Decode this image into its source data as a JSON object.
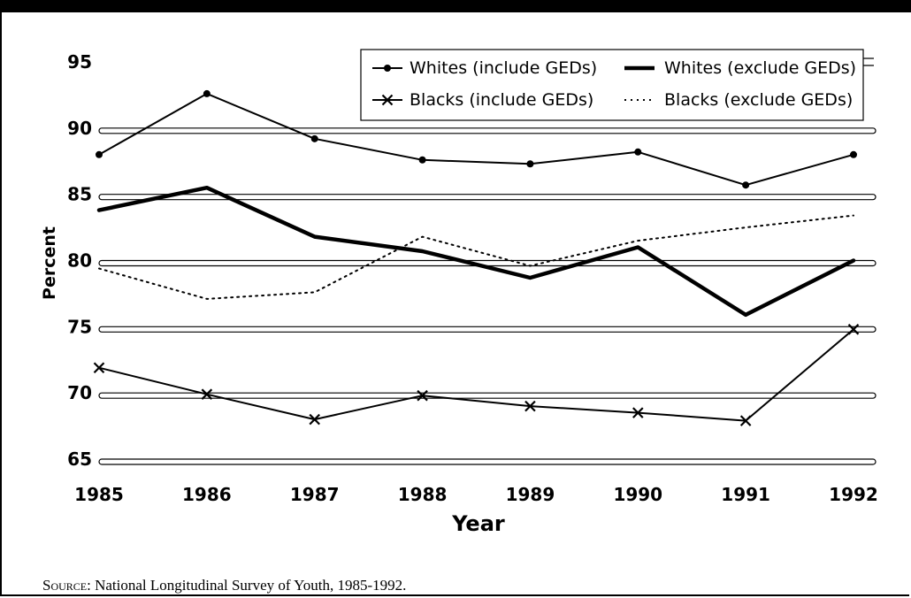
{
  "chart_data": {
    "type": "line",
    "x": [
      1985,
      1986,
      1987,
      1988,
      1989,
      1990,
      1991,
      1992
    ],
    "xlabel": "Year",
    "ylabel": "Percent",
    "ylim": [
      65,
      95
    ],
    "yticks": [
      65,
      70,
      75,
      80,
      85,
      90,
      95
    ],
    "grid": true,
    "legend_position": "top-right",
    "series": [
      {
        "name": "Whites (include GEDs)",
        "style": "line-dot",
        "values": [
          88.2,
          92.8,
          89.4,
          87.8,
          87.5,
          88.4,
          85.9,
          88.2
        ]
      },
      {
        "name": "Whites (exclude GEDs)",
        "style": "thick",
        "values": [
          84.0,
          85.7,
          82.0,
          80.9,
          78.9,
          81.2,
          76.1,
          80.2
        ]
      },
      {
        "name": "Blacks (include GEDs)",
        "style": "line-x",
        "values": [
          72.1,
          70.1,
          68.2,
          70.0,
          69.2,
          68.7,
          68.1,
          75.0
        ]
      },
      {
        "name": "Blacks (exclude GEDs)",
        "style": "dotted",
        "values": [
          79.6,
          77.3,
          77.8,
          82.0,
          79.8,
          81.7,
          82.7,
          83.6
        ]
      }
    ]
  },
  "source": {
    "label": "Source:",
    "text": " National Longitudinal Survey of Youth, 1985-1992."
  }
}
